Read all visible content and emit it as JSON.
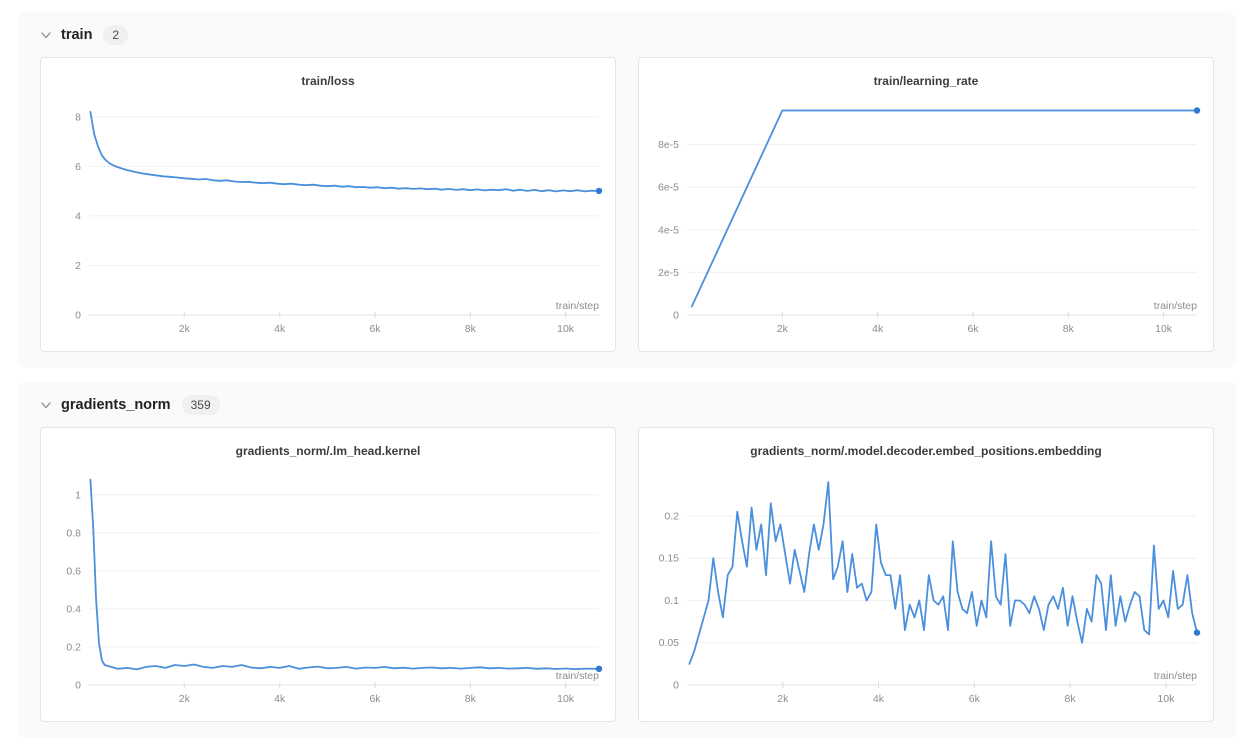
{
  "theme": {
    "line_color": "#4a90dc",
    "dot_color": "#2e7ad2",
    "grid_color": "#f0f0f0",
    "axis_color": "#e4e4e4",
    "tick_mark_color": "#dcdcdc",
    "tick_text_color": "#8c8c8c",
    "section_bg": "#fafafa",
    "card_border": "#e5e5e5"
  },
  "sections": [
    {
      "label": "train",
      "count": "2",
      "chart_indices": [
        0,
        1
      ]
    },
    {
      "label": "gradients_norm",
      "count": "359",
      "chart_indices": [
        2,
        3
      ]
    }
  ],
  "chart_data": [
    {
      "type": "line",
      "title": "train/loss",
      "xlabel": "train/step",
      "xlim": [
        0,
        10700
      ],
      "ylim": [
        0,
        8.6
      ],
      "xticks": [
        2000,
        4000,
        6000,
        8000,
        10000
      ],
      "xtick_labels": [
        "2k",
        "4k",
        "6k",
        "8k",
        "10k"
      ],
      "yticks": [
        0,
        2,
        4,
        6,
        8
      ],
      "ytick_labels": [
        "0",
        "2",
        "4",
        "6",
        "8"
      ],
      "grid": "horizontal",
      "end_dot": true,
      "x": [
        30,
        110,
        190,
        270,
        350,
        450,
        560,
        680,
        800,
        950,
        1100,
        1250,
        1400,
        1550,
        1700,
        1850,
        2000,
        2150,
        2300,
        2450,
        2600,
        2750,
        2900,
        3050,
        3200,
        3350,
        3500,
        3650,
        3800,
        3950,
        4100,
        4250,
        4400,
        4550,
        4700,
        4850,
        5000,
        5150,
        5300,
        5450,
        5600,
        5750,
        5900,
        6050,
        6200,
        6350,
        6500,
        6650,
        6800,
        6950,
        7100,
        7250,
        7400,
        7550,
        7700,
        7850,
        8000,
        8150,
        8300,
        8450,
        8600,
        8750,
        8900,
        9050,
        9200,
        9350,
        9500,
        9650,
        9800,
        9950,
        10100,
        10250,
        10400,
        10550,
        10700
      ],
      "y": [
        8.2,
        7.3,
        6.8,
        6.45,
        6.25,
        6.1,
        6.0,
        5.92,
        5.85,
        5.78,
        5.72,
        5.68,
        5.64,
        5.6,
        5.58,
        5.55,
        5.52,
        5.5,
        5.47,
        5.49,
        5.44,
        5.42,
        5.44,
        5.39,
        5.37,
        5.38,
        5.34,
        5.32,
        5.34,
        5.3,
        5.28,
        5.3,
        5.26,
        5.24,
        5.26,
        5.22,
        5.2,
        5.22,
        5.18,
        5.2,
        5.16,
        5.17,
        5.14,
        5.16,
        5.12,
        5.14,
        5.1,
        5.12,
        5.09,
        5.11,
        5.08,
        5.1,
        5.06,
        5.09,
        5.05,
        5.08,
        5.04,
        5.07,
        5.03,
        5.06,
        5.04,
        5.08,
        5.02,
        5.06,
        5.01,
        5.05,
        5.0,
        5.04,
        4.99,
        5.03,
        5.0,
        5.04,
        4.99,
        5.02,
        5.01
      ]
    },
    {
      "type": "line",
      "title": "train/learning_rate",
      "xlabel": "train/step",
      "xlim": [
        0,
        10700
      ],
      "ylim": [
        0,
        0.0001
      ],
      "xticks": [
        2000,
        4000,
        6000,
        8000,
        10000
      ],
      "xtick_labels": [
        "2k",
        "4k",
        "6k",
        "8k",
        "10k"
      ],
      "yticks": [
        0,
        2e-05,
        4e-05,
        6e-05,
        8e-05
      ],
      "ytick_labels": [
        "0",
        "2e-5",
        "4e-5",
        "6e-5",
        "8e-5"
      ],
      "grid": "horizontal",
      "end_dot": true,
      "x": [
        100,
        2000,
        10700
      ],
      "y": [
        4e-06,
        9.6e-05,
        9.6e-05
      ]
    },
    {
      "type": "line",
      "title": "gradients_norm/.lm_head.kernel",
      "xlabel": "train/step",
      "xlim": [
        0,
        10700
      ],
      "ylim": [
        0,
        1.12
      ],
      "xticks": [
        2000,
        4000,
        6000,
        8000,
        10000
      ],
      "xtick_labels": [
        "2k",
        "4k",
        "6k",
        "8k",
        "10k"
      ],
      "yticks": [
        0,
        0.2,
        0.4,
        0.6,
        0.8,
        1
      ],
      "ytick_labels": [
        "0",
        "0.2",
        "0.4",
        "0.6",
        "0.8",
        "1"
      ],
      "grid": "horizontal",
      "end_dot": true,
      "x": [
        30,
        90,
        150,
        210,
        270,
        330,
        400,
        600,
        800,
        1000,
        1200,
        1400,
        1600,
        1800,
        2000,
        2200,
        2400,
        2600,
        2800,
        3000,
        3200,
        3400,
        3600,
        3800,
        4000,
        4200,
        4400,
        4600,
        4800,
        5000,
        5200,
        5400,
        5600,
        5800,
        6000,
        6200,
        6400,
        6600,
        6800,
        7000,
        7200,
        7400,
        7600,
        7800,
        8000,
        8200,
        8400,
        8600,
        8800,
        9000,
        9200,
        9400,
        9600,
        9800,
        10000,
        10200,
        10400,
        10700
      ],
      "y": [
        1.08,
        0.82,
        0.45,
        0.22,
        0.13,
        0.105,
        0.1,
        0.085,
        0.09,
        0.082,
        0.095,
        0.1,
        0.09,
        0.105,
        0.1,
        0.108,
        0.095,
        0.09,
        0.1,
        0.095,
        0.105,
        0.092,
        0.088,
        0.095,
        0.09,
        0.1,
        0.085,
        0.092,
        0.097,
        0.088,
        0.09,
        0.095,
        0.086,
        0.092,
        0.09,
        0.095,
        0.088,
        0.091,
        0.086,
        0.09,
        0.092,
        0.088,
        0.09,
        0.086,
        0.09,
        0.093,
        0.088,
        0.09,
        0.086,
        0.088,
        0.09,
        0.085,
        0.088,
        0.084,
        0.087,
        0.083,
        0.086,
        0.085
      ]
    },
    {
      "type": "line",
      "title": "gradients_norm/.model.decoder.embed_positions.embedding",
      "xlabel": "train/step",
      "xlim": [
        0,
        10650
      ],
      "ylim": [
        0,
        0.252
      ],
      "xticks": [
        2000,
        4000,
        6000,
        8000,
        10000
      ],
      "xtick_labels": [
        "2k",
        "4k",
        "6k",
        "8k",
        "10k"
      ],
      "yticks": [
        0,
        0.05,
        0.1,
        0.15,
        0.2
      ],
      "ytick_labels": [
        "0",
        "0.05",
        "0.1",
        "0.15",
        "0.2"
      ],
      "grid": "horizontal",
      "end_dot": true,
      "x": [
        50,
        150,
        250,
        350,
        450,
        550,
        650,
        750,
        850,
        950,
        1050,
        1150,
        1250,
        1350,
        1450,
        1550,
        1650,
        1750,
        1850,
        1950,
        2050,
        2150,
        2250,
        2350,
        2450,
        2550,
        2650,
        2750,
        2850,
        2950,
        3050,
        3150,
        3250,
        3350,
        3450,
        3550,
        3650,
        3750,
        3850,
        3950,
        4050,
        4150,
        4250,
        4350,
        4450,
        4550,
        4650,
        4750,
        4850,
        4950,
        5050,
        5150,
        5250,
        5350,
        5450,
        5550,
        5650,
        5750,
        5850,
        5950,
        6050,
        6150,
        6250,
        6350,
        6450,
        6550,
        6650,
        6750,
        6850,
        6950,
        7050,
        7150,
        7250,
        7350,
        7450,
        7550,
        7650,
        7750,
        7850,
        7950,
        8050,
        8150,
        8250,
        8350,
        8450,
        8550,
        8650,
        8750,
        8850,
        8950,
        9050,
        9150,
        9250,
        9350,
        9450,
        9550,
        9650,
        9750,
        9850,
        9950,
        10050,
        10150,
        10250,
        10350,
        10450,
        10550,
        10650
      ],
      "y": [
        0.025,
        0.04,
        0.06,
        0.08,
        0.1,
        0.15,
        0.11,
        0.08,
        0.13,
        0.14,
        0.205,
        0.17,
        0.14,
        0.21,
        0.16,
        0.19,
        0.13,
        0.215,
        0.17,
        0.19,
        0.155,
        0.12,
        0.16,
        0.135,
        0.11,
        0.155,
        0.19,
        0.16,
        0.19,
        0.24,
        0.125,
        0.14,
        0.17,
        0.11,
        0.155,
        0.115,
        0.12,
        0.1,
        0.11,
        0.19,
        0.145,
        0.13,
        0.13,
        0.09,
        0.13,
        0.065,
        0.095,
        0.08,
        0.1,
        0.065,
        0.13,
        0.1,
        0.095,
        0.105,
        0.065,
        0.17,
        0.11,
        0.09,
        0.085,
        0.11,
        0.07,
        0.1,
        0.08,
        0.17,
        0.105,
        0.095,
        0.155,
        0.07,
        0.1,
        0.1,
        0.095,
        0.085,
        0.105,
        0.09,
        0.065,
        0.095,
        0.105,
        0.09,
        0.115,
        0.07,
        0.105,
        0.075,
        0.05,
        0.09,
        0.075,
        0.13,
        0.12,
        0.065,
        0.13,
        0.07,
        0.105,
        0.075,
        0.095,
        0.11,
        0.105,
        0.065,
        0.06,
        0.165,
        0.09,
        0.1,
        0.08,
        0.135,
        0.09,
        0.095,
        0.13,
        0.085,
        0.062
      ]
    }
  ]
}
